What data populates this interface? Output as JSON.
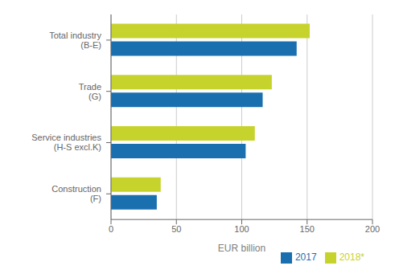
{
  "chart_data": {
    "type": "bar",
    "orientation": "horizontal",
    "categories": [
      "Total industry\n(B-E)",
      "Trade\n(G)",
      "Service industries\n(H-S excl.K)",
      "Construction\n(F)"
    ],
    "series": [
      {
        "name": "2018*",
        "color": "#c7d32d",
        "values": [
          152,
          123,
          110,
          38
        ]
      },
      {
        "name": "2017",
        "color": "#1a6faf",
        "values": [
          142,
          116,
          103,
          35
        ]
      }
    ],
    "xlabel": "EUR billion",
    "xlim": [
      0,
      200
    ],
    "xticks": [
      0,
      50,
      100,
      150,
      200
    ],
    "grid": true,
    "legend": "lower right"
  }
}
